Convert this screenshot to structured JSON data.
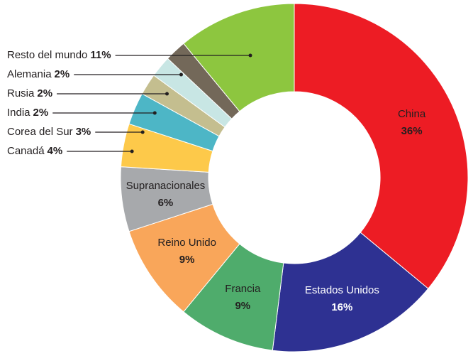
{
  "chart_data": {
    "type": "donut",
    "categories": [
      "China",
      "Estados Unidos",
      "Francia",
      "Reino Unido",
      "Supranacionales",
      "Canadá",
      "Corea del Sur",
      "India",
      "Rusia",
      "Alemania",
      "Resto del mundo"
    ],
    "values": [
      36,
      16,
      9,
      9,
      6,
      4,
      3,
      2,
      2,
      2,
      11
    ],
    "value_labels": [
      "36%",
      "16%",
      "9%",
      "9%",
      "6%",
      "4%",
      "3%",
      "2%",
      "2%",
      "2%",
      "11%"
    ],
    "colors": [
      "#ed1c24",
      "#2e3192",
      "#4fac6c",
      "#f9a65a",
      "#a7a9ac",
      "#fdc94a",
      "#4db6c6",
      "#c4be8f",
      "#c8e6e4",
      "#736859",
      "#8dc63f"
    ]
  }
}
